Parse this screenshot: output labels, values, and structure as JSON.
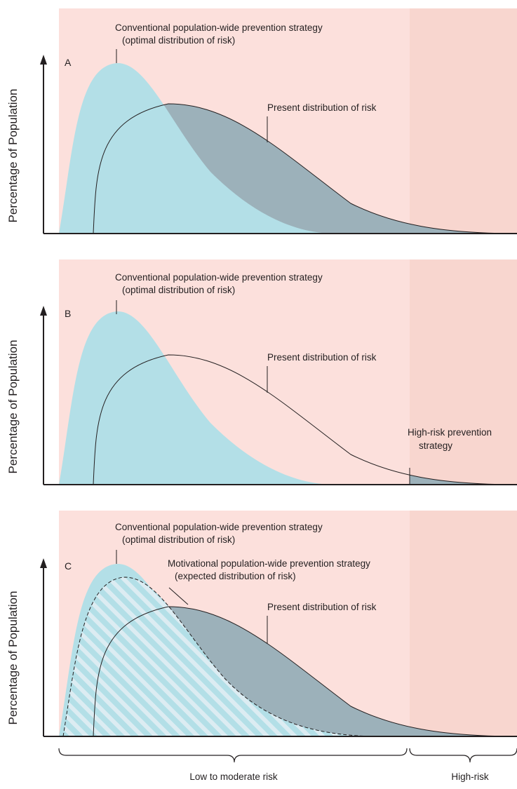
{
  "colors": {
    "low_region": "#fce0dc",
    "high_region": "#f8d6cf",
    "optimal_fill": "#b3dfe7",
    "present_overlap": "#9cb1ba",
    "hatch_stripe": "#dcecf2",
    "ink": "#231f20"
  },
  "panels": [
    {
      "letter": "A",
      "ylabel": "Percentage of Population",
      "optimal_label_1": "Conventional population-wide prevention strategy",
      "optimal_label_2": "(optimal distribution of risk)",
      "present_label": "Present distribution of risk"
    },
    {
      "letter": "B",
      "ylabel": "Percentage of Population",
      "optimal_label_1": "Conventional population-wide prevention strategy",
      "optimal_label_2": "(optimal distribution of risk)",
      "present_label": "Present distribution of risk",
      "highrisk_label_1": "High-risk prevention",
      "highrisk_label_2": "strategy"
    },
    {
      "letter": "C",
      "ylabel": "Percentage of Population",
      "optimal_label_1": "Conventional population-wide prevention strategy",
      "optimal_label_2": "(optimal distribution of risk)",
      "motivational_label_1": "Motivational population-wide prevention strategy",
      "motivational_label_2": "(expected distribution of risk)",
      "present_label": "Present distribution of risk"
    }
  ],
  "xaxis": {
    "low_label": "Low to moderate risk",
    "high_label": "High-risk"
  }
}
